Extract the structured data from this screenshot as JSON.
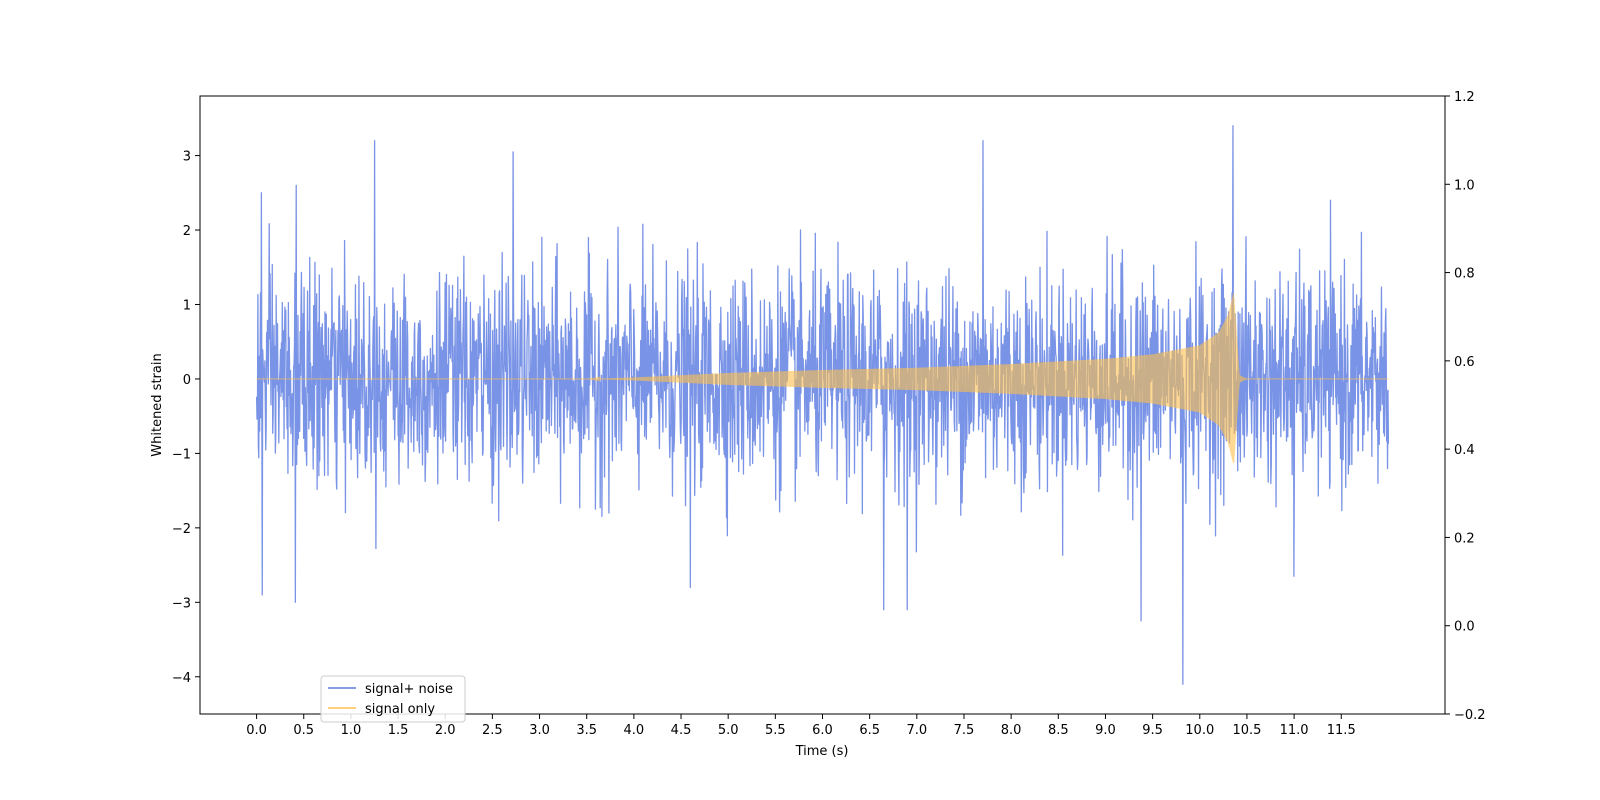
{
  "chart_data": {
    "type": "line",
    "title": "",
    "xlabel": "Time (s)",
    "ylabel": "Whitened strain",
    "y2label": "",
    "xlim": [
      -0.6,
      12.6
    ],
    "ylim": [
      -4.5,
      3.8
    ],
    "y2lim": [
      -0.2,
      1.2
    ],
    "xticks": [
      "0.0",
      "0.5",
      "1.0",
      "1.5",
      "2.0",
      "2.5",
      "3.0",
      "3.5",
      "4.0",
      "4.5",
      "5.0",
      "5.5",
      "6.0",
      "6.5",
      "7.0",
      "7.5",
      "8.0",
      "8.5",
      "9.0",
      "9.5",
      "10.0",
      "10.5",
      "11.0",
      "11.5"
    ],
    "yticks": [
      "3",
      "2",
      "1",
      "0",
      "−1",
      "−2",
      "−3",
      "−4"
    ],
    "y2ticks": [
      "1.2",
      "1.0",
      "0.8",
      "0.6",
      "0.4",
      "0.2",
      "0.0",
      "−0.2"
    ],
    "grid": false,
    "legend_position": "lower-left",
    "series": [
      {
        "name": "signal+ noise",
        "color": "#5b7be0",
        "description_params": {
          "t_start": 0.0,
          "t_end": 12.0,
          "noise_sigma": 0.7
        },
        "notable_peaks": [
          {
            "x": 0.05,
            "y": 2.5
          },
          {
            "x": 0.42,
            "y": 2.6
          },
          {
            "x": 0.41,
            "y": -3.0
          },
          {
            "x": 0.06,
            "y": -2.9
          },
          {
            "x": 1.25,
            "y": 3.2
          },
          {
            "x": 2.72,
            "y": 3.05
          },
          {
            "x": 4.6,
            "y": -2.8
          },
          {
            "x": 6.65,
            "y": -3.1
          },
          {
            "x": 6.9,
            "y": -3.1
          },
          {
            "x": 7.7,
            "y": 3.2
          },
          {
            "x": 9.38,
            "y": -3.25
          },
          {
            "x": 9.82,
            "y": -4.1
          },
          {
            "x": 10.35,
            "y": 3.4
          },
          {
            "x": 11.0,
            "y": -2.65
          }
        ]
      },
      {
        "name": "signal only",
        "color": "#ffc04d",
        "description_params": {
          "t_start": 0.0,
          "t_end": 12.0,
          "merger_time": 10.36,
          "peak_amplitude": 1.15
        },
        "envelope": [
          {
            "x": 4.0,
            "y": 0.02
          },
          {
            "x": 5.0,
            "y": 0.08
          },
          {
            "x": 6.0,
            "y": 0.12
          },
          {
            "x": 7.0,
            "y": 0.15
          },
          {
            "x": 8.0,
            "y": 0.2
          },
          {
            "x": 9.0,
            "y": 0.27
          },
          {
            "x": 9.5,
            "y": 0.33
          },
          {
            "x": 10.0,
            "y": 0.45
          },
          {
            "x": 10.2,
            "y": 0.62
          },
          {
            "x": 10.3,
            "y": 0.85
          },
          {
            "x": 10.36,
            "y": 1.15
          },
          {
            "x": 10.42,
            "y": 0.05
          },
          {
            "x": 10.5,
            "y": 0.0
          }
        ]
      }
    ]
  }
}
